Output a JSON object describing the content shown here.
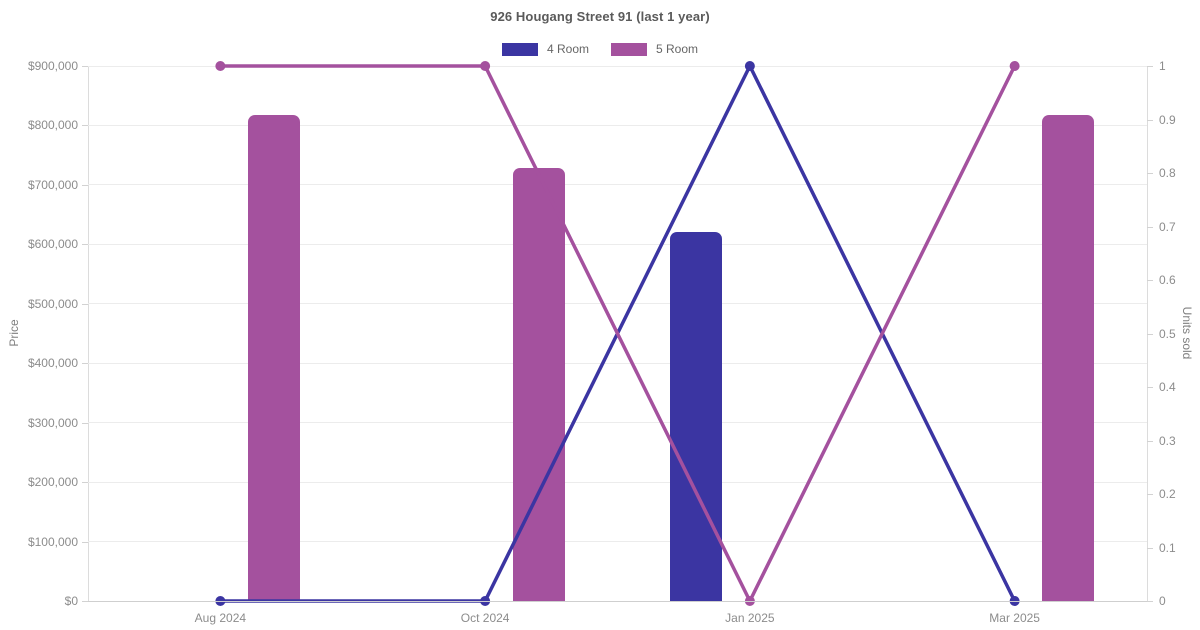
{
  "page": {
    "title": "926 Hougang Street 91 (last 1 year)"
  },
  "chart_data": {
    "type": "bar+line",
    "title": "926 Hougang Street 91 (last 1 year)",
    "categories": [
      "Aug 2024",
      "Oct 2024",
      "Jan 2025",
      "Mar 2025"
    ],
    "series": [
      {
        "name": "4 Room",
        "color": "#3b35a2",
        "bar_metric": "price",
        "bar_values": [
          null,
          null,
          620000,
          null
        ],
        "line_metric": "units_sold",
        "line_values": [
          0,
          0,
          1,
          0
        ]
      },
      {
        "name": "5 Room",
        "color": "#a4519e",
        "bar_metric": "price",
        "bar_values": [
          818000,
          728000,
          null,
          818000
        ],
        "line_metric": "units_sold",
        "line_values": [
          1,
          1,
          0,
          1
        ]
      }
    ],
    "y_left": {
      "label": "Price",
      "min": 0,
      "max": 900000,
      "tick_labels": [
        "$0",
        "$100,000",
        "$200,000",
        "$300,000",
        "$400,000",
        "$500,000",
        "$600,000",
        "$700,000",
        "$800,000",
        "$900,000"
      ]
    },
    "y_right": {
      "label": "Units sold",
      "min": 0,
      "max": 1,
      "tick_labels": [
        "0",
        "0.1",
        "0.2",
        "0.3",
        "0.4",
        "0.5",
        "0.6",
        "0.7",
        "0.8",
        "0.9",
        "1"
      ]
    },
    "grid": "horizontal-only",
    "legend_position": "top-center",
    "background": "#ffffff"
  }
}
